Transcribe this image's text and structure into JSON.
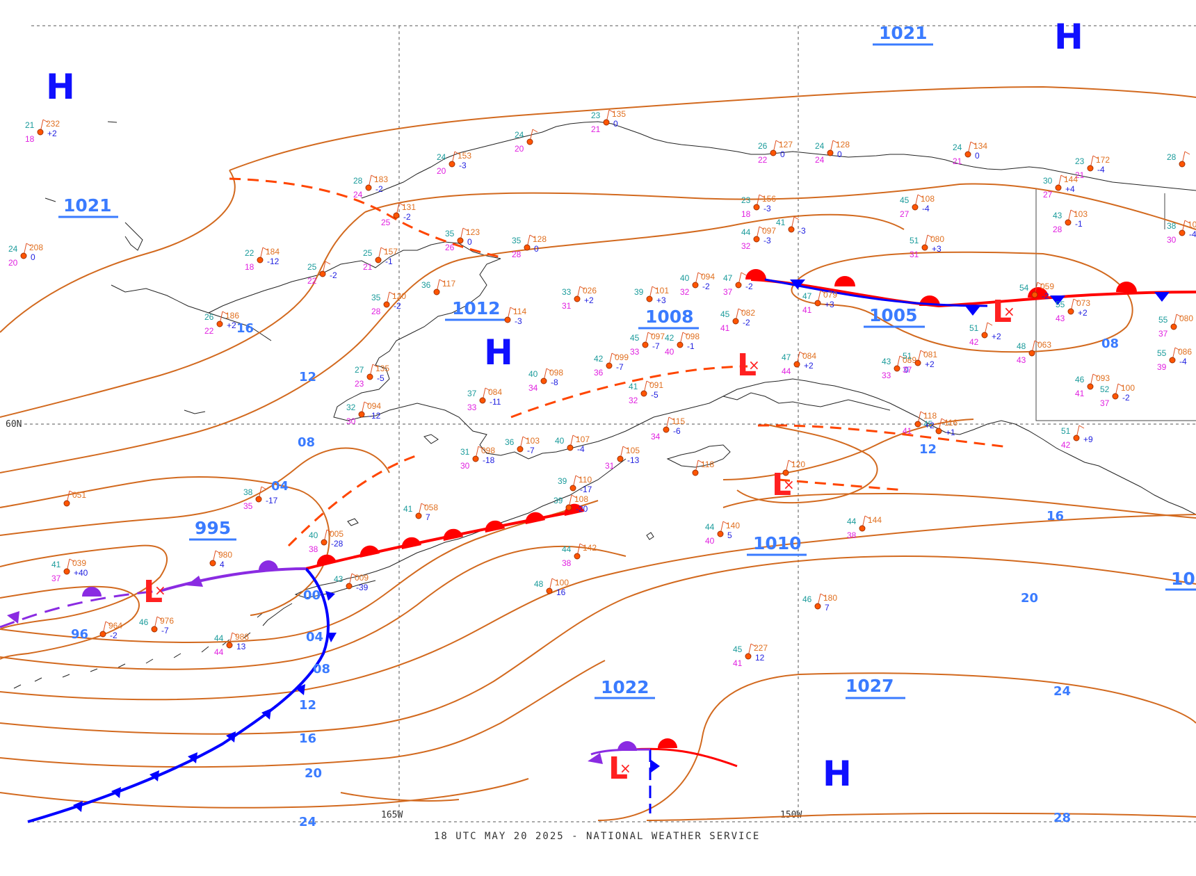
{
  "footer": "18 UTC MAY 20 2025 - NATIONAL WEATHER SERVICE",
  "grid_labels": {
    "lat": "60N",
    "lon_left": "165W",
    "lon_right": "150W"
  },
  "colors": {
    "isobar": "#d2691e",
    "warm_front": "#ff0000",
    "cold_front": "#0000ff",
    "occluded_front": "#8a2be2",
    "trough": "#ff4500",
    "high": "#1010ff",
    "low": "#ff2020"
  },
  "pressure_labels": [
    "1021",
    "1021",
    "1012",
    "1008",
    "1005",
    "995",
    "1010",
    "1022",
    "1027",
    "10"
  ],
  "contour_values": [
    "12",
    "16",
    "08",
    "04",
    "00",
    "04",
    "08",
    "12",
    "16",
    "20",
    "24",
    "08",
    "12",
    "16",
    "20",
    "24",
    "28",
    "96"
  ],
  "highs": [
    "H",
    "H",
    "H",
    "H"
  ],
  "lows": [
    "L",
    "L",
    "L",
    "L",
    "L"
  ],
  "stations": [
    {
      "t": "21",
      "p": "232",
      "d": "18",
      "c": "+2"
    },
    {
      "t": "24",
      "p": "208",
      "d": "20",
      "c": "0"
    },
    {
      "t": "22",
      "p": "184",
      "d": "18",
      "c": "-12"
    },
    {
      "t": "25",
      "p": "",
      "d": "22",
      "c": "-2"
    },
    {
      "t": "26",
      "p": "186",
      "d": "22",
      "c": "+2"
    },
    {
      "t": "28",
      "p": "183",
      "d": "24",
      "c": "-2"
    },
    {
      "t": "24",
      "p": "153",
      "d": "20",
      "c": "-3"
    },
    {
      "t": "",
      "p": "131",
      "d": "25",
      "c": "-2"
    },
    {
      "t": "35",
      "p": "123",
      "d": "26",
      "c": "0"
    },
    {
      "t": "25",
      "p": "157",
      "d": "21",
      "c": "-1"
    },
    {
      "t": "35",
      "p": "120",
      "d": "28",
      "c": "-2"
    },
    {
      "t": "36",
      "p": "117",
      "d": "",
      "c": ""
    },
    {
      "t": "35",
      "p": "128",
      "d": "28",
      "c": "0"
    },
    {
      "t": "",
      "p": "114",
      "d": "",
      "c": "-3"
    },
    {
      "t": "23",
      "p": "135",
      "d": "21",
      "c": "0"
    },
    {
      "t": "24",
      "p": "",
      "d": "20",
      "c": ""
    },
    {
      "t": "27",
      "p": "135",
      "d": "23",
      "c": "-5"
    },
    {
      "t": "32",
      "p": "094",
      "d": "30",
      "c": "-12"
    },
    {
      "t": "37",
      "p": "084",
      "d": "33",
      "c": "-11"
    },
    {
      "t": "40",
      "p": "098",
      "d": "34",
      "c": "-8"
    },
    {
      "t": "42",
      "p": "099",
      "d": "36",
      "c": "-7"
    },
    {
      "t": "33",
      "p": "026",
      "d": "31",
      "c": "+2"
    },
    {
      "t": "39",
      "p": "101",
      "d": "",
      "c": "+3"
    },
    {
      "t": "45",
      "p": "097",
      "d": "33",
      "c": "-7"
    },
    {
      "t": "42",
      "p": "098",
      "d": "40",
      "c": "-1"
    },
    {
      "t": "41",
      "p": "091",
      "d": "32",
      "c": "-5"
    },
    {
      "t": "40",
      "p": "094",
      "d": "32",
      "c": "-2"
    },
    {
      "t": "45",
      "p": "082",
      "d": "41",
      "c": "-2"
    },
    {
      "t": "47",
      "p": "",
      "d": "37",
      "c": "-2"
    },
    {
      "t": "26",
      "p": "127",
      "d": "22",
      "c": "0"
    },
    {
      "t": "24",
      "p": "128",
      "d": "24",
      "c": "0"
    },
    {
      "t": "24",
      "p": "134",
      "d": "21",
      "c": "0"
    },
    {
      "t": "23",
      "p": "156",
      "d": "18",
      "c": "-3"
    },
    {
      "t": "44",
      "p": "097",
      "d": "32",
      "c": "-3"
    },
    {
      "t": "41",
      "p": "",
      "d": "",
      "c": "-3"
    },
    {
      "t": "45",
      "p": "108",
      "d": "27",
      "c": "-4"
    },
    {
      "t": "51",
      "p": "080",
      "d": "31",
      "c": "+3"
    },
    {
      "t": "47",
      "p": "079",
      "d": "41",
      "c": "+3"
    },
    {
      "t": "51",
      "p": "",
      "d": "42",
      "c": "+2"
    },
    {
      "t": "47",
      "p": "084",
      "d": "44",
      "c": "+2"
    },
    {
      "t": "43",
      "p": "089",
      "d": "33",
      "c": "0"
    },
    {
      "t": "51",
      "p": "081",
      "d": "37",
      "c": "+2"
    },
    {
      "t": "36",
      "p": "103",
      "d": "",
      "c": "-7"
    },
    {
      "t": "40",
      "p": "107",
      "d": "",
      "c": "-4"
    },
    {
      "t": "31",
      "p": "098",
      "d": "30",
      "c": "-18"
    },
    {
      "t": "",
      "p": "105",
      "d": "31",
      "c": "-13"
    },
    {
      "t": "39",
      "p": "110",
      "d": "",
      "c": "-17"
    },
    {
      "t": "39",
      "p": "108",
      "d": "",
      "c": "-20"
    },
    {
      "t": "",
      "p": "115",
      "d": "34",
      "c": "-6"
    },
    {
      "t": "",
      "p": "118",
      "d": "",
      "c": ""
    },
    {
      "t": "",
      "p": "120",
      "d": "",
      "c": ""
    },
    {
      "t": "45",
      "p": "116",
      "d": "",
      "c": "+1"
    },
    {
      "t": "",
      "p": "118",
      "d": "41",
      "c": "+2"
    },
    {
      "t": "",
      "p": "051",
      "d": "",
      "c": ""
    },
    {
      "t": "",
      "p": "980",
      "d": "",
      "c": "4"
    },
    {
      "t": "38",
      "p": "",
      "d": "35",
      "c": "-17"
    },
    {
      "t": "40",
      "p": "005",
      "d": "38",
      "c": "-28"
    },
    {
      "t": "41",
      "p": "058",
      "d": "",
      "c": "7"
    },
    {
      "t": "41",
      "p": "039",
      "d": "37",
      "c": "+40"
    },
    {
      "t": "43",
      "p": "009",
      "d": "",
      "c": "-39"
    },
    {
      "t": "46",
      "p": "976",
      "d": "",
      "c": "-7"
    },
    {
      "t": "",
      "p": "964",
      "d": "",
      "c": "-2"
    },
    {
      "t": "44",
      "p": "988",
      "d": "44",
      "c": "13"
    },
    {
      "t": "48",
      "p": "100",
      "d": "",
      "c": "16"
    },
    {
      "t": "44",
      "p": "142",
      "d": "38",
      "c": ""
    },
    {
      "t": "44",
      "p": "140",
      "d": "40",
      "c": "5"
    },
    {
      "t": "44",
      "p": "144",
      "d": "38",
      "c": ""
    },
    {
      "t": "46",
      "p": "180",
      "d": "",
      "c": "7"
    },
    {
      "t": "45",
      "p": "227",
      "d": "41",
      "c": "12"
    },
    {
      "t": "23",
      "p": "172",
      "d": "21",
      "c": "-4"
    },
    {
      "t": "30",
      "p": "144",
      "d": "27",
      "c": "+4"
    },
    {
      "t": "43",
      "p": "103",
      "d": "28",
      "c": "-1"
    },
    {
      "t": "54",
      "p": "059",
      "d": "",
      "c": "-2"
    },
    {
      "t": "55",
      "p": "073",
      "d": "43",
      "c": "+2"
    },
    {
      "t": "48",
      "p": "063",
      "d": "43",
      "c": ""
    },
    {
      "t": "46",
      "p": "093",
      "d": "41",
      "c": ""
    },
    {
      "t": "52",
      "p": "100",
      "d": "37",
      "c": "-2"
    },
    {
      "t": "55",
      "p": "080",
      "d": "37",
      "c": ""
    },
    {
      "t": "55",
      "p": "086",
      "d": "39",
      "c": "-4"
    },
    {
      "t": "28",
      "p": "",
      "d": "",
      "c": ""
    },
    {
      "t": "38",
      "p": "107",
      "d": "30",
      "c": "-4"
    },
    {
      "t": "51",
      "p": "",
      "d": "42",
      "c": "+9"
    }
  ]
}
